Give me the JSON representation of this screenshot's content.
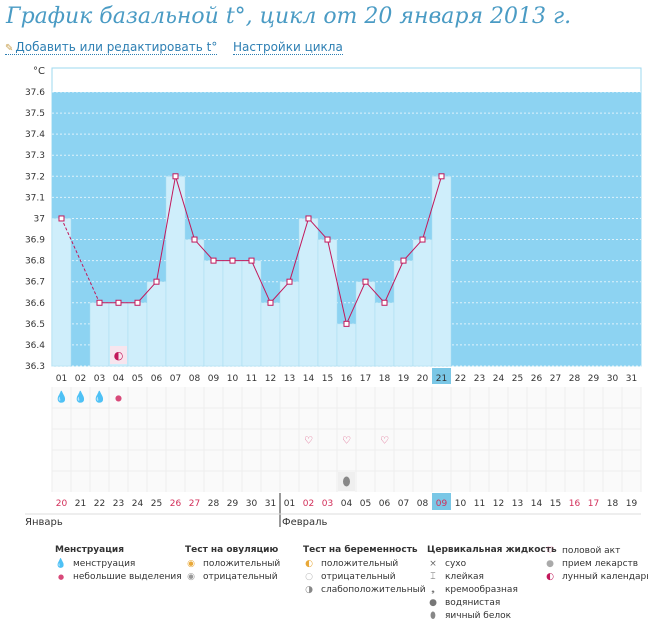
{
  "title": "График базальной t°, цикл от 20 января 2013 г.",
  "links": {
    "edit": "Добавить или редактировать t°",
    "settings": "Настройки цикла"
  },
  "colors": {
    "title": "#4a9bc4",
    "band": "#8dd3f2",
    "bar": "#cfeefb",
    "line": "#c2185b",
    "today": "#7ac7e6",
    "weekend": "#d22f5a"
  },
  "chart_data": {
    "type": "line",
    "unit_label": "°C",
    "ylim": [
      36.3,
      37.7
    ],
    "yticks": [
      "36.3",
      "36.4",
      "36.5",
      "36.6",
      "36.7",
      "36.8",
      "36.9",
      "37",
      "37.1",
      "37.2",
      "37.3",
      "37.4",
      "37.5",
      "37.6"
    ],
    "band": [
      36.3,
      37.6
    ],
    "day_numbers": [
      "01",
      "02",
      "03",
      "04",
      "05",
      "06",
      "07",
      "08",
      "09",
      "10",
      "11",
      "12",
      "13",
      "14",
      "15",
      "16",
      "17",
      "18",
      "19",
      "20",
      "21",
      "22",
      "23",
      "24",
      "25",
      "26",
      "27",
      "28",
      "29",
      "30",
      "31"
    ],
    "dates": [
      "20",
      "21",
      "22",
      "23",
      "24",
      "25",
      "26",
      "27",
      "28",
      "29",
      "30",
      "31",
      "01",
      "02",
      "03",
      "04",
      "05",
      "06",
      "07",
      "08",
      "09",
      "10",
      "11",
      "12",
      "13",
      "14",
      "15",
      "16",
      "17",
      "18",
      "19"
    ],
    "weekend_dates": [
      0,
      6,
      7,
      13,
      14,
      20,
      27,
      28
    ],
    "today_index": 20,
    "months": [
      {
        "label": "Январь",
        "start": 0
      },
      {
        "label": "Февраль",
        "start": 12
      }
    ],
    "temperatures": [
      37.0,
      null,
      36.6,
      36.6,
      36.6,
      36.7,
      37.2,
      36.9,
      36.8,
      36.8,
      36.8,
      36.6,
      36.7,
      37.0,
      36.9,
      36.5,
      36.7,
      36.6,
      36.8,
      36.9,
      37.2
    ],
    "menstruation": [
      "heavy",
      "heavy",
      "heavy",
      "light"
    ],
    "lunar_day": 3,
    "intercourse_days": [
      13,
      15,
      17
    ],
    "egg_white_day": 15
  },
  "legend": {
    "menstruation": {
      "title": "Менструация",
      "items": [
        "менструация",
        "небольшие выделения"
      ]
    },
    "ovulation": {
      "title": "Тест на овуляцию",
      "items": [
        "положительный",
        "отрицательный"
      ]
    },
    "pregnancy": {
      "title": "Тест на беременность",
      "items": [
        "положительный",
        "отрицательный",
        "слабоположительный"
      ]
    },
    "cervical": {
      "title": "Цервикальная жидкость",
      "items": [
        "сухо",
        "клейкая",
        "кремообразная",
        "водянистая",
        "яичный белок"
      ]
    },
    "other": {
      "items": [
        "половой акт",
        "прием лекарств",
        "лунный календарь"
      ]
    }
  }
}
